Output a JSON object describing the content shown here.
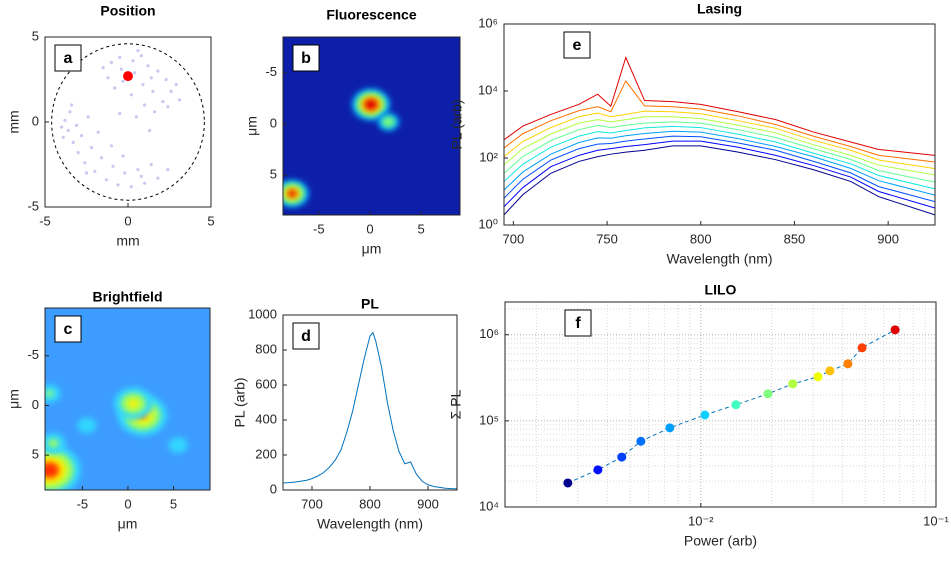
{
  "chart_data": [
    {
      "type": "scatter",
      "panel_label": "a",
      "title": "Position",
      "x_label": "mm",
      "y_label": "mm",
      "xlim": [
        -5,
        5
      ],
      "ylim": [
        -5,
        5
      ],
      "xticks": [
        -5,
        0,
        5
      ],
      "yticks": [
        -5,
        0,
        5
      ],
      "color": "#c8c8f0",
      "boundary_radius": 4.6,
      "x": [
        -1.5,
        -1,
        -0.5,
        0.3,
        0.8,
        1.2,
        1.8,
        2.3,
        2.6,
        2.1,
        1.5,
        0.9,
        0.4,
        -0.3,
        -0.8,
        -1.2,
        1.0,
        1.6,
        2.4,
        0.2,
        -0.4,
        1.4,
        2.9,
        3.1,
        0.6,
        -3.8,
        -3.6,
        -3.3,
        -3.9,
        -3.5,
        -3.0,
        -2.6,
        -2.0,
        -1.3,
        -0.6,
        0.2,
        1.0,
        1.8,
        -2.8,
        -2.2,
        -1.6,
        -0.9,
        -0.2,
        0.6,
        1.4,
        -3.1,
        -2.4,
        -1.8,
        -1.0,
        -0.3,
        2.4,
        -4.0,
        -3.4,
        -2.5,
        0.8,
        0.5,
        1.3,
        -0.5
      ],
      "values": [
        3.2,
        3.5,
        3.8,
        3.6,
        3.9,
        3.3,
        3.0,
        2.5,
        1.8,
        1.2,
        1.8,
        2.2,
        2.9,
        2.4,
        2.0,
        2.6,
        1.0,
        0.6,
        0.9,
        1.6,
        3.1,
        2.6,
        2.2,
        1.3,
        4.2,
        0.1,
        -0.5,
        -1.2,
        -0.9,
        0.6,
        -1.8,
        -2.4,
        -2.9,
        -3.4,
        -3.7,
        -3.8,
        -3.6,
        -3.3,
        -0.8,
        -1.5,
        -2.1,
        -2.6,
        -3.0,
        -2.8,
        -2.5,
        -0.2,
        0.3,
        -0.6,
        -1.4,
        -2.0,
        -2.8,
        -0.3,
        1.0,
        -3.0,
        -3.2,
        0.3,
        -0.5,
        0.5
      ],
      "highlight": {
        "x": 0,
        "y": 2.7,
        "color": "#ff0000"
      }
    },
    {
      "type": "heatmap",
      "panel_label": "b",
      "title": "Fluorescence",
      "x_label": "μm",
      "y_label": "μm",
      "xlim": [
        -8.5,
        8.8
      ],
      "ylim": [
        -8.5,
        8.9
      ],
      "yreverse": true,
      "xticks": [
        -5,
        0,
        5
      ],
      "yticks": [
        -5,
        0,
        5
      ],
      "background": "#0d1fa8",
      "colormap": [
        "#00a8ff",
        "#7dff7a",
        "#ffd000",
        "#e00000"
      ],
      "x": [
        0.1,
        1.8,
        -7.6
      ],
      "y": [
        -1.9,
        -0.2,
        6.8
      ],
      "intensity": [
        1.0,
        0.5,
        0.85
      ]
    },
    {
      "type": "heatmap",
      "panel_label": "c",
      "title": "Brightfield",
      "x_label": "μm",
      "y_label": "μm",
      "xlim": [
        -9.1,
        9.0
      ],
      "ylim": [
        -9.8,
        8.5
      ],
      "yreverse": true,
      "xticks": [
        -5,
        0,
        5
      ],
      "yticks": [
        -5,
        0,
        5
      ],
      "background": "#3d9cff",
      "colormap": [
        "#33d6ff",
        "#9dff5e",
        "#ffee00",
        "#ff3300"
      ],
      "x": [
        1.6,
        0.6,
        -8.6,
        -8.2,
        -8.6,
        5.5,
        -4.5
      ],
      "y": [
        1.0,
        -0.2,
        6.5,
        3.8,
        -1.2,
        4,
        2
      ],
      "intensity": [
        0.78,
        0.6,
        1.0,
        0.35,
        0.3,
        0.25,
        0.25
      ]
    },
    {
      "type": "line",
      "panel_label": "d",
      "title": "PL",
      "x_label": "Wavelength (nm)",
      "y_label": "PL (arb)",
      "xlim": [
        650,
        950
      ],
      "ylim": [
        0,
        1000
      ],
      "xticks": [
        700,
        800,
        900
      ],
      "yticks": [
        0,
        200,
        400,
        600,
        800,
        1000
      ],
      "color": "#0072bd",
      "x": [
        650,
        660,
        670,
        680,
        690,
        700,
        710,
        720,
        730,
        740,
        750,
        760,
        770,
        780,
        790,
        800,
        805,
        810,
        820,
        830,
        840,
        850,
        860,
        870,
        880,
        890,
        900,
        910,
        920,
        930,
        940,
        950
      ],
      "values": [
        40,
        42,
        45,
        50,
        55,
        65,
        80,
        100,
        130,
        170,
        230,
        330,
        450,
        600,
        750,
        880,
        900,
        850,
        700,
        500,
        340,
        220,
        150,
        160,
        90,
        50,
        30,
        20,
        15,
        10,
        8,
        7
      ]
    },
    {
      "type": "line",
      "panel_label": "e",
      "title": "Lasing",
      "x_label": "Wavelength (nm)",
      "y_label": "PL (arb)",
      "xlim": [
        695,
        925
      ],
      "ylim": [
        1,
        1000000
      ],
      "ylog": true,
      "xticks": [
        700,
        750,
        800,
        850,
        900
      ],
      "yticks": [
        {
          "value": 1,
          "label": "10⁰"
        },
        {
          "value": 100,
          "label": "10²"
        },
        {
          "value": 10000,
          "label": "10⁴"
        },
        {
          "value": 1000000,
          "label": "10⁶"
        }
      ],
      "x": [
        695,
        705,
        720,
        735,
        745,
        752,
        760,
        770,
        785,
        800,
        820,
        840,
        860,
        880,
        895,
        925
      ],
      "series": [
        {
          "color": "#00008f",
          "values": [
            2,
            8,
            35,
            79,
            110,
            130,
            150,
            170,
            230,
            230,
            150,
            89,
            45,
            20,
            7,
            2
          ]
        },
        {
          "color": "#0000ff",
          "values": [
            3.5,
            13,
            55,
            120,
            170,
            190,
            220,
            250,
            320,
            320,
            210,
            120,
            60,
            27,
            10,
            3.2
          ]
        },
        {
          "color": "#0050ff",
          "values": [
            6.3,
            23,
            87,
            190,
            260,
            270,
            320,
            370,
            450,
            430,
            280,
            170,
            80,
            36,
            14,
            5
          ]
        },
        {
          "color": "#00a0ff",
          "values": [
            11,
            38,
            130,
            290,
            400,
            390,
            460,
            540,
            630,
            590,
            380,
            220,
            110,
            49,
            21,
            7.8
          ]
        },
        {
          "color": "#10e8e0",
          "values": [
            20,
            65,
            210,
            450,
            610,
            560,
            660,
            790,
            880,
            810,
            510,
            300,
            140,
            67,
            30,
            12
          ]
        },
        {
          "color": "#60ff90",
          "values": [
            35,
            110,
            330,
            700,
            940,
            810,
            950,
            1100,
            1200,
            1100,
            700,
            410,
            190,
            91,
            42,
            19
          ]
        },
        {
          "color": "#b0ff40",
          "values": [
            62,
            190,
            520,
            1100,
            1400,
            1200,
            1400,
            1700,
            1700,
            1500,
            950,
            560,
            250,
            120,
            61,
            31
          ]
        },
        {
          "color": "#ffd000",
          "values": [
            110,
            310,
            810,
            1700,
            2200,
            1700,
            2000,
            2500,
            2400,
            2100,
            1300,
            770,
            340,
            170,
            87,
            48
          ]
        },
        {
          "color": "#ff7000",
          "values": [
            200,
            530,
            1300,
            2600,
            3400,
            2400,
            20000,
            3600,
            3400,
            2900,
            1800,
            1000,
            450,
            220,
            120,
            76
          ]
        },
        {
          "color": "#e00000",
          "values": [
            350,
            890,
            2000,
            4000,
            8000,
            3500,
            100000,
            5200,
            4800,
            4000,
            2400,
            1400,
            600,
            300,
            180,
            120
          ]
        }
      ]
    },
    {
      "type": "scatter",
      "panel_label": "f",
      "title": "LILO",
      "x_label": "Power (arb)",
      "y_label": "Σ PL",
      "xlim": [
        0.00147,
        0.1
      ],
      "ylim": [
        10000,
        2400000
      ],
      "xlog": true,
      "ylog": true,
      "grid": true,
      "minor_grid": true,
      "xticks": [
        {
          "value": 0.01,
          "label": "10⁻²"
        },
        {
          "value": 0.1,
          "label": "10⁻¹"
        }
      ],
      "yticks": [
        {
          "value": 10000,
          "label": "10⁴"
        },
        {
          "value": 100000,
          "label": "10⁵"
        },
        {
          "value": 1000000,
          "label": "10⁶"
        }
      ],
      "line_color": "#0072bd",
      "line_style": "dashed",
      "x": [
        0.00272,
        0.00365,
        0.00461,
        0.00556,
        0.00738,
        0.0104,
        0.0141,
        0.0193,
        0.0246,
        0.0315,
        0.0354,
        0.0422,
        0.0485,
        0.067
      ],
      "values": [
        19000,
        27000,
        38000,
        58000,
        83000,
        117000,
        154000,
        206000,
        269000,
        325000,
        381000,
        460000,
        706000,
        1140000
      ],
      "colors": [
        "#00008f",
        "#0010ff",
        "#0040ff",
        "#0070ff",
        "#00a0ff",
        "#10d0ff",
        "#40ffc0",
        "#80ff80",
        "#b0ff40",
        "#f0ff00",
        "#ffc000",
        "#ff8000",
        "#ff4000",
        "#e00000"
      ]
    }
  ]
}
